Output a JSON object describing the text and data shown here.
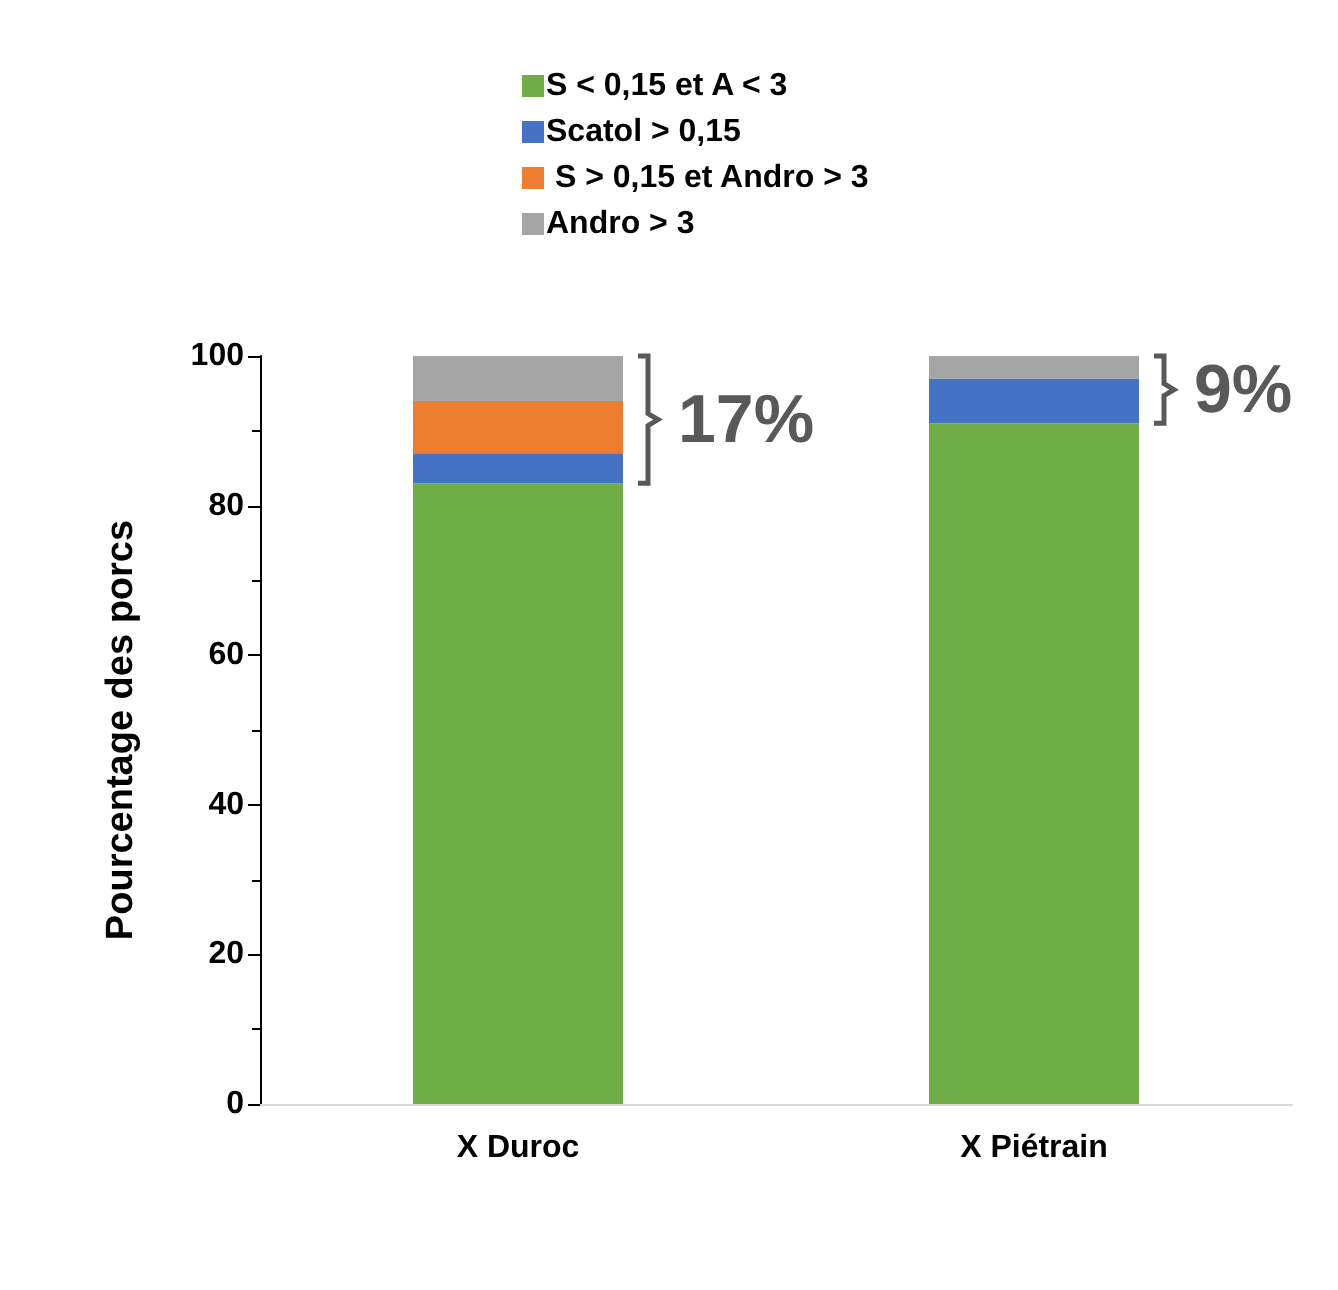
{
  "chart_data": {
    "type": "bar",
    "stacked": true,
    "ylabel": "Pourcentage des porcs",
    "categories": [
      "X Duroc",
      "X Piétrain"
    ],
    "series": [
      {
        "name": "S < 0,15 et A < 3",
        "color": "#70ad47",
        "values": [
          83,
          91
        ]
      },
      {
        "name": "Scatol > 0,15",
        "color": "#4472c4",
        "values": [
          4,
          6
        ]
      },
      {
        "name": " S > 0,15 et Andro > 3",
        "color": "#ed7d31",
        "values": [
          7,
          0
        ]
      },
      {
        "name": "Andro > 3",
        "color": "#a5a5a5",
        "values": [
          6,
          3
        ]
      }
    ],
    "ylim": [
      0,
      100
    ],
    "yticks": [
      0,
      20,
      40,
      60,
      80,
      100
    ],
    "grid": false,
    "legend": "top",
    "annotations": [
      "17%",
      "9%"
    ]
  }
}
